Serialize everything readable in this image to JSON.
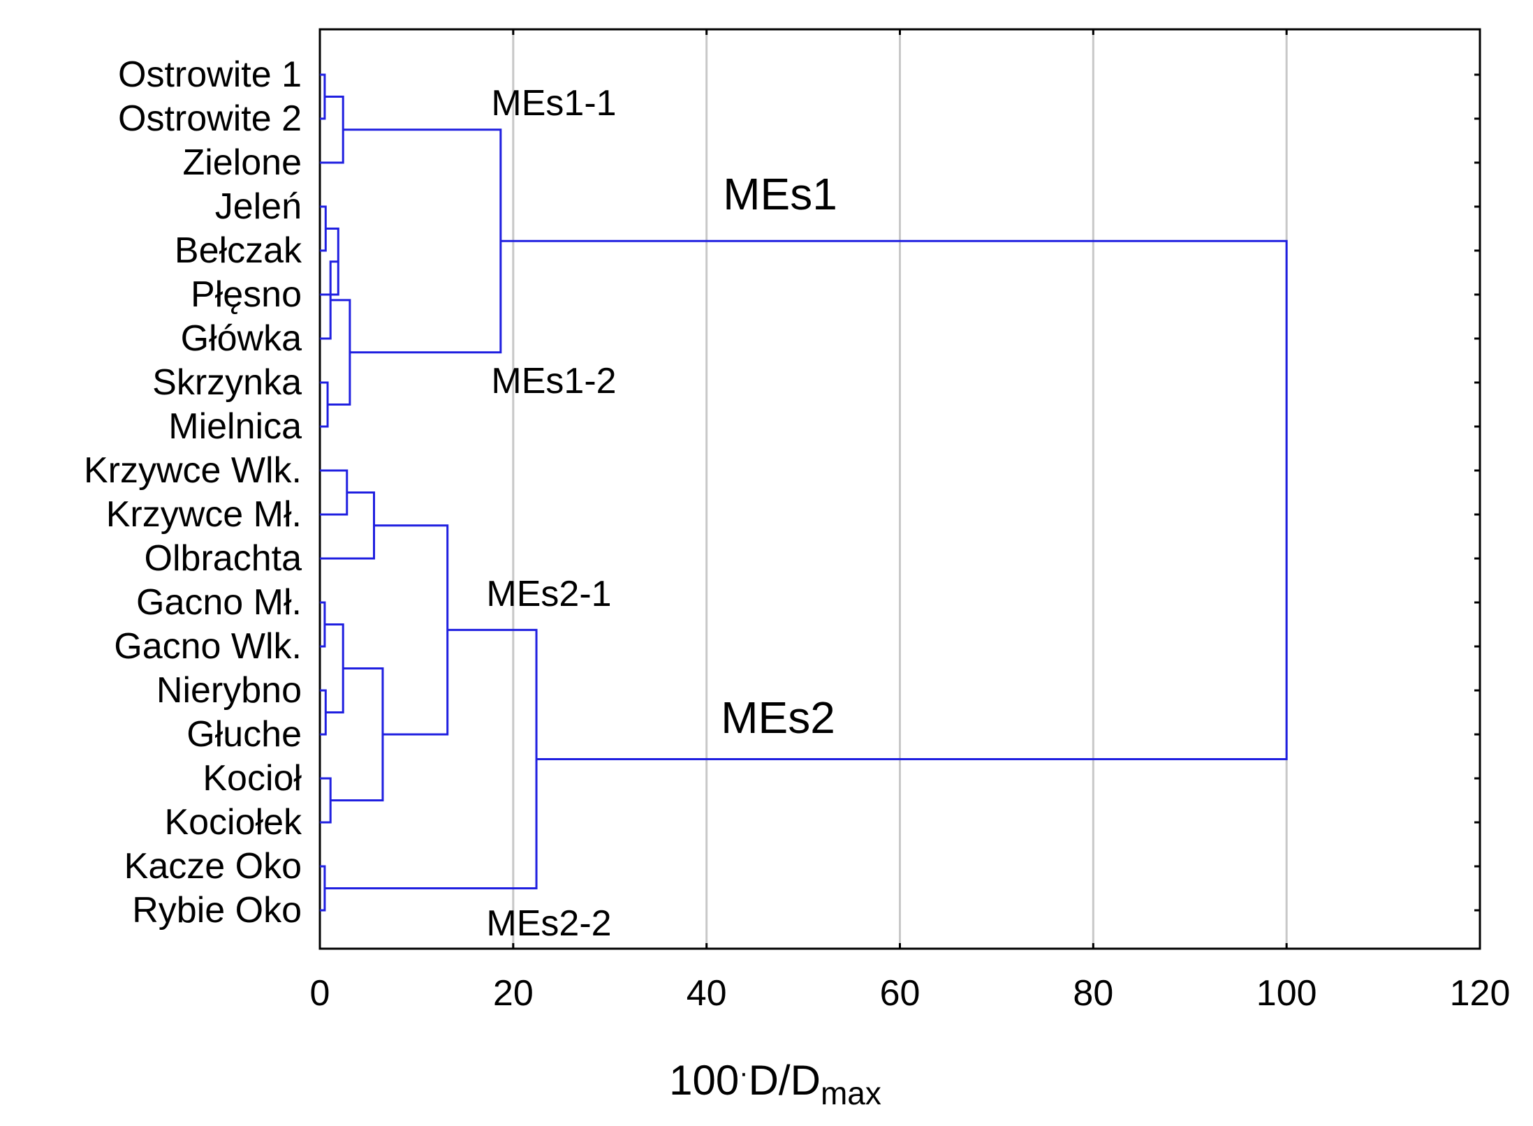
{
  "chart_data": {
    "type": "dendrogram",
    "title": "",
    "xlabel": {
      "main": "100",
      "dot": "·",
      "rest": "D/D",
      "subscript": "max"
    },
    "ylabel": "",
    "xlim": [
      0,
      120
    ],
    "xticks": [
      "0",
      "20",
      "40",
      "60",
      "80",
      "100",
      "120"
    ],
    "grid": "vertical",
    "colors": {
      "links": "#1f1fe0",
      "grid": "#c8c8c8",
      "axes": "#000000"
    },
    "leaves": [
      "Ostrowite 1",
      "Ostrowite 2",
      "Zielone",
      "Jeleń",
      "Bełczak",
      "Płęsno",
      "Główka",
      "Skrzynka",
      "Mielnica",
      "Krzywce Wlk.",
      "Krzywce Mł.",
      "Olbrachta",
      "Gacno Mł.",
      "Gacno Wlk.",
      "Nierybno",
      "Głuche",
      "Kocioł",
      "Kociołek",
      "Kacze Oko",
      "Rybie Oko"
    ],
    "merges": [
      {
        "left": "L0",
        "right": "L1",
        "height": 0.5
      },
      {
        "left": "M0",
        "right": "L2",
        "height": 2.4
      },
      {
        "left": "L3",
        "right": "L4",
        "height": 0.6
      },
      {
        "left": "M2",
        "right": "L5",
        "height": 1.9
      },
      {
        "left": "M3",
        "right": "L6",
        "height": 1.1
      },
      {
        "left": "L7",
        "right": "L8",
        "height": 0.8
      },
      {
        "left": "M4",
        "right": "M5",
        "height": 3.1
      },
      {
        "left": "M1",
        "right": "M6",
        "height": 18.7
      },
      {
        "left": "L9",
        "right": "L10",
        "height": 2.8
      },
      {
        "left": "M8",
        "right": "L11",
        "height": 5.6
      },
      {
        "left": "L12",
        "right": "L13",
        "height": 0.5
      },
      {
        "left": "L14",
        "right": "L15",
        "height": 0.6
      },
      {
        "left": "M10",
        "right": "M11",
        "height": 2.4
      },
      {
        "left": "L16",
        "right": "L17",
        "height": 1.1
      },
      {
        "left": "M12",
        "right": "M13",
        "height": 6.5
      },
      {
        "left": "M9",
        "right": "M14",
        "height": 13.2
      },
      {
        "left": "L18",
        "right": "L19",
        "height": 0.5
      },
      {
        "left": "M15",
        "right": "M16",
        "height": 22.4
      },
      {
        "left": "M7",
        "right": "M17",
        "height": 100
      }
    ],
    "cluster_labels": [
      {
        "text": "MEs1-1",
        "size": "small"
      },
      {
        "text": "MEs1-2",
        "size": "small"
      },
      {
        "text": "MEs2-1",
        "size": "small"
      },
      {
        "text": "MEs2-2",
        "size": "small"
      },
      {
        "text": "MEs1",
        "size": "large"
      },
      {
        "text": "MEs2",
        "size": "large"
      }
    ]
  }
}
